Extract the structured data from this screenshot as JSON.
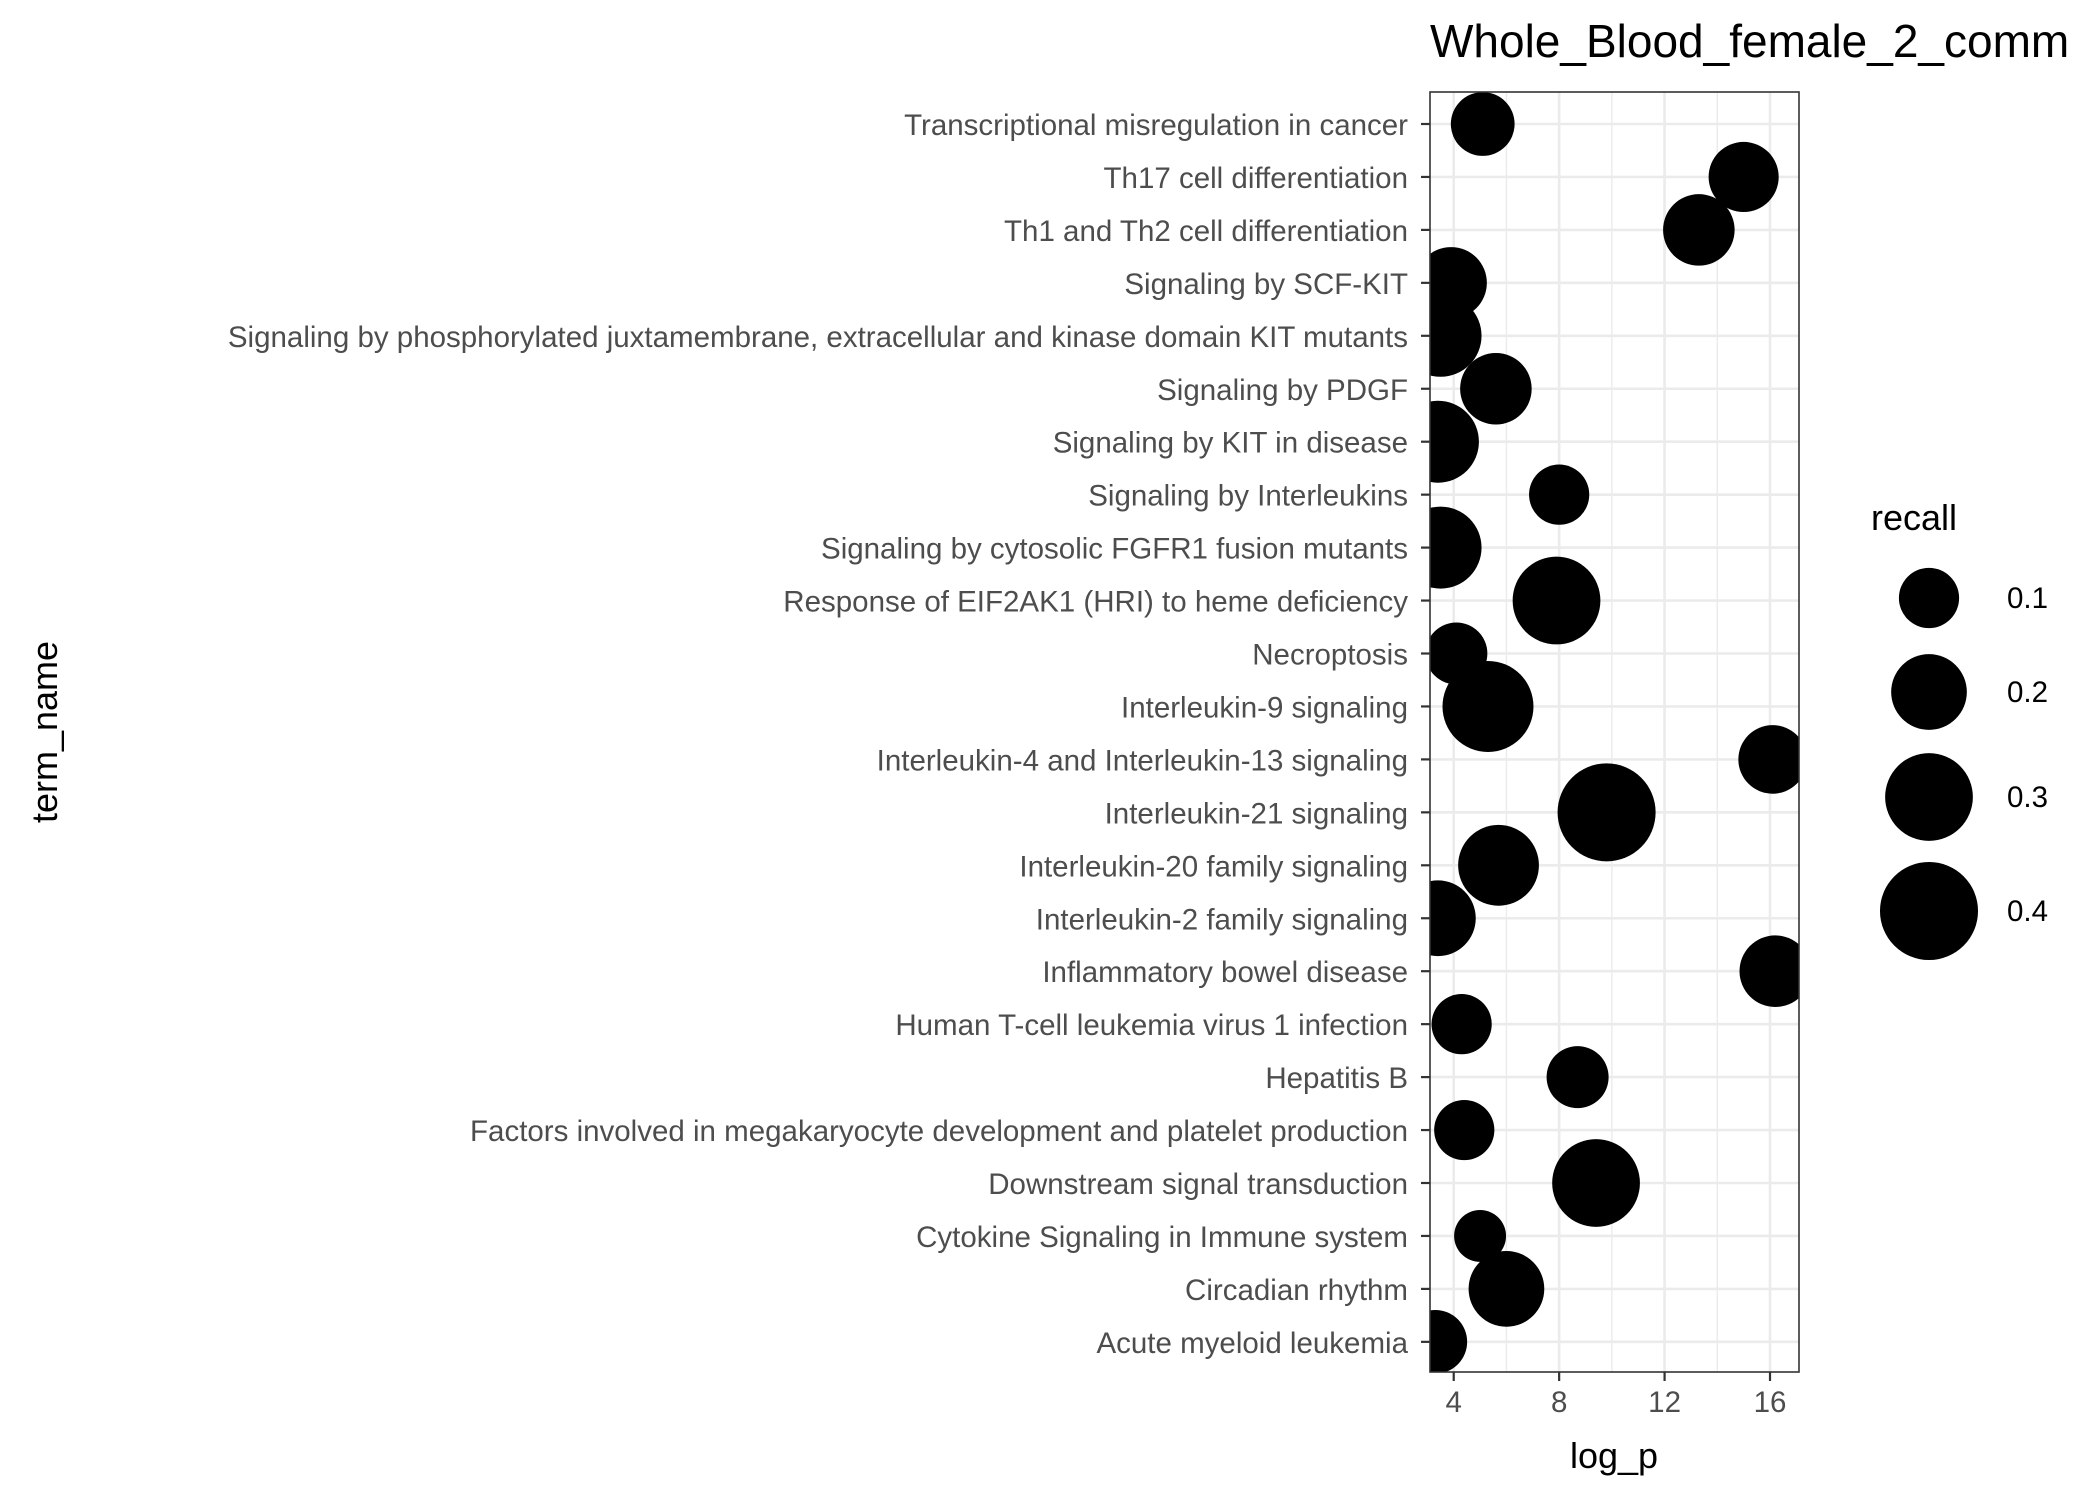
{
  "chart_data": {
    "type": "scatter",
    "title": "Whole_Blood_female_2_comm",
    "xlabel": "log_p",
    "ylabel": "term_name",
    "xlim": [
      3.1,
      17.1
    ],
    "x_ticks": [
      4,
      8,
      12,
      16
    ],
    "grid": true,
    "legend": {
      "title": "recall",
      "position": "right",
      "values": [
        0.1,
        0.2,
        0.3,
        0.4
      ],
      "labels": [
        "0.1",
        "0.2",
        "0.3",
        "0.4"
      ]
    },
    "points": [
      {
        "term": "Transcriptional misregulation in cancer",
        "log_p": 5.1,
        "recall": 0.12
      },
      {
        "term": "Th17 cell differentiation",
        "log_p": 15.0,
        "recall": 0.16
      },
      {
        "term": "Th1 and Th2 cell differentiation",
        "log_p": 13.3,
        "recall": 0.17
      },
      {
        "term": "Signaling by SCF-KIT",
        "log_p": 3.9,
        "recall": 0.17
      },
      {
        "term": "Signaling by phosphorylated juxtamembrane, extracellular and kinase domain KIT mutants",
        "log_p": 3.5,
        "recall": 0.25
      },
      {
        "term": "Signaling by PDGF",
        "log_p": 5.6,
        "recall": 0.17
      },
      {
        "term": "Signaling by KIT in disease",
        "log_p": 3.4,
        "recall": 0.25
      },
      {
        "term": "Signaling by Interleukins",
        "log_p": 8.0,
        "recall": 0.1
      },
      {
        "term": "Signaling by cytosolic FGFR1 fusion mutants",
        "log_p": 3.5,
        "recall": 0.25
      },
      {
        "term": "Response of EIF2AK1 (HRI) to heme deficiency",
        "log_p": 7.9,
        "recall": 0.3
      },
      {
        "term": "Necroptosis",
        "log_p": 4.1,
        "recall": 0.11
      },
      {
        "term": "Interleukin-9 signaling",
        "log_p": 5.3,
        "recall": 0.33
      },
      {
        "term": "Interleukin-4 and Interleukin-13 signaling",
        "log_p": 16.1,
        "recall": 0.15
      },
      {
        "term": "Interleukin-21 signaling",
        "log_p": 9.8,
        "recall": 0.4
      },
      {
        "term": "Interleukin-20 family signaling",
        "log_p": 5.7,
        "recall": 0.24
      },
      {
        "term": "Interleukin-2 family signaling",
        "log_p": 3.4,
        "recall": 0.2
      },
      {
        "term": "Inflammatory bowel disease",
        "log_p": 16.2,
        "recall": 0.17
      },
      {
        "term": "Human T-cell leukemia virus 1 infection",
        "log_p": 4.3,
        "recall": 0.1
      },
      {
        "term": "Hepatitis B",
        "log_p": 8.7,
        "recall": 0.11
      },
      {
        "term": "Factors involved in megakaryocyte development and platelet production",
        "log_p": 4.4,
        "recall": 0.1
      },
      {
        "term": "Downstream signal transduction",
        "log_p": 9.4,
        "recall": 0.3
      },
      {
        "term": "Cytokine Signaling in Immune system",
        "log_p": 5.0,
        "recall": 0.06
      },
      {
        "term": "Circadian rhythm",
        "log_p": 6.0,
        "recall": 0.2
      },
      {
        "term": "Acute myeloid leukemia",
        "log_p": 3.3,
        "recall": 0.12
      }
    ],
    "point_color": "#000000",
    "grid_color": "#ebebeb",
    "panel_border_color": "#333333"
  }
}
